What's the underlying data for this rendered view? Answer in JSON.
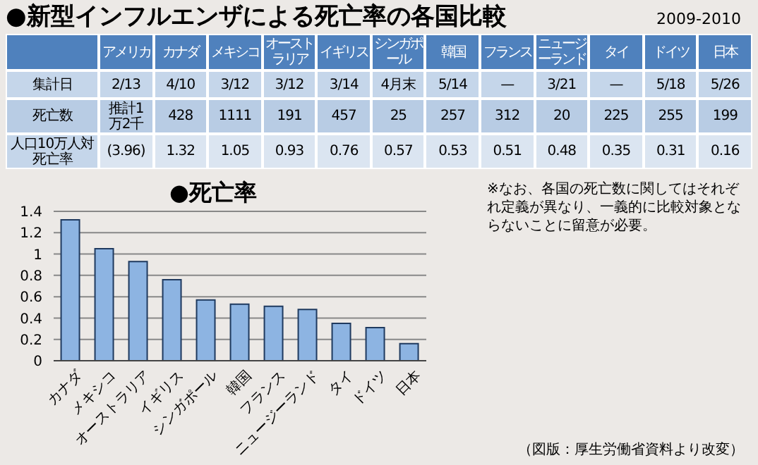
{
  "chart_data": [
    {
      "type": "other",
      "title": "●新型インフルエンザによる死亡率の各国比較",
      "subtitle": "2009-2010",
      "categories": [
        null,
        "アメリカ",
        "カナダ",
        "メキシコ",
        "オーストラリア",
        "イギリス",
        "シンガポール",
        "韓国",
        "フランス",
        "ニュージーランド",
        "タイ",
        "ドイツ",
        "日本"
      ],
      "y_categories": [
        "集計日",
        "死亡数",
        "人口10万人対死亡率"
      ],
      "cell_labels": [
        [
          "2/13",
          "4/10",
          "3/12",
          "3/12",
          "3/14",
          "4月末",
          "5/14",
          "—",
          "3/21",
          "—",
          "5/18",
          "5/26"
        ],
        [
          "推計1万2千",
          "428",
          "1111",
          "191",
          "457",
          "25",
          "257",
          "312",
          "20",
          "225",
          "255",
          "199"
        ],
        [
          "(3.96)",
          "1.32",
          "1.05",
          "0.93",
          "0.76",
          "0.57",
          "0.53",
          "0.51",
          "0.48",
          "0.35",
          "0.31",
          "0.16"
        ]
      ]
    },
    {
      "type": "bar",
      "title": "●死亡率",
      "categories": [
        "カナダ",
        "メキシコ",
        "オーストラリア",
        "イギリス",
        "シンガポール",
        "韓国",
        "フランス",
        "ニュージーランド",
        "タイ",
        "ドイツ",
        "日本"
      ],
      "values": [
        1.32,
        1.05,
        0.93,
        0.76,
        0.57,
        0.53,
        0.51,
        0.48,
        0.35,
        0.31,
        0.16
      ],
      "color": "#8db4e2",
      "ylim": [
        0,
        1.4
      ],
      "yticks": [
        0,
        0.2,
        0.4,
        0.6,
        0.8,
        1,
        1.2,
        1.4
      ],
      "grid": "y",
      "annotations": [
        "※なお、各国の死亡数に関してはそれぞれ定義が異なり、一義的に比較対象とならないことに留意が必要。",
        "（図版：厚生労働省資料より改変）"
      ]
    }
  ]
}
